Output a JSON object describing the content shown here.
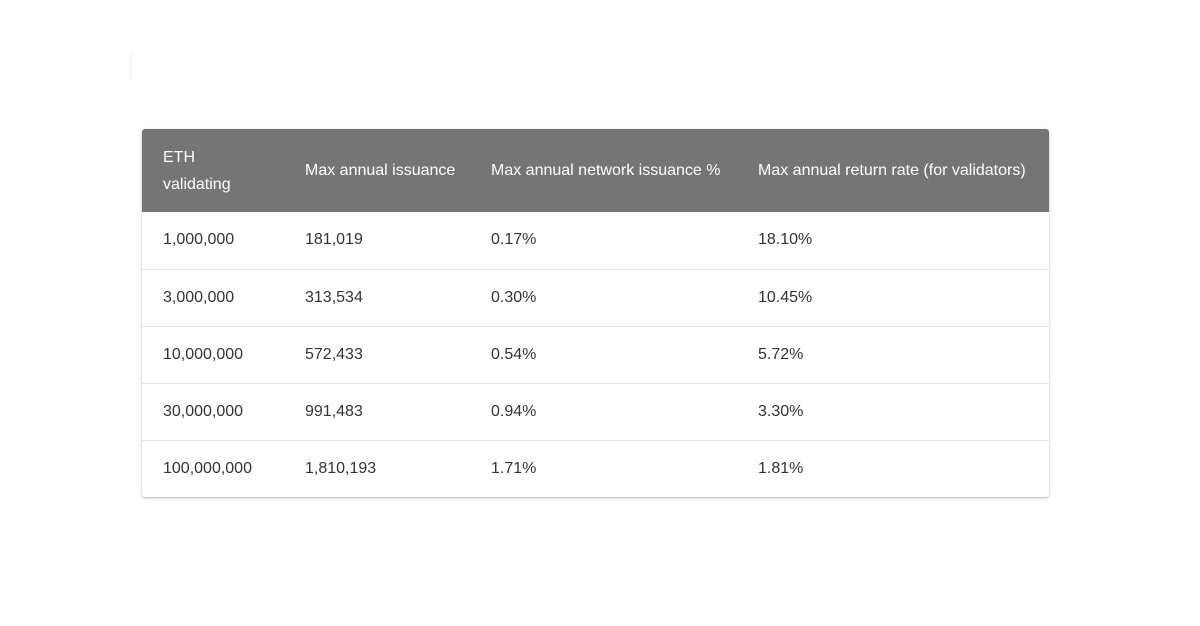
{
  "table": {
    "headers": [
      "ETH validating",
      "Max annual issuance",
      "Max annual network issuance %",
      "Max annual return rate (for validators)"
    ],
    "rows": [
      [
        "1,000,000",
        "181,019",
        "0.17%",
        "18.10%"
      ],
      [
        "3,000,000",
        "313,534",
        "0.30%",
        "10.45%"
      ],
      [
        "10,000,000",
        "572,433",
        "0.54%",
        "5.72%"
      ],
      [
        "30,000,000",
        "991,483",
        "0.94%",
        "3.30%"
      ],
      [
        "100,000,000",
        "1,810,193",
        "1.71%",
        "1.81%"
      ]
    ]
  }
}
